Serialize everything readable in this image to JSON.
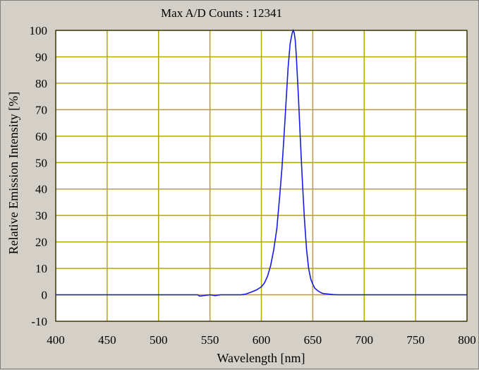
{
  "chart_data": {
    "type": "line",
    "title": "Max A/D Counts : 12341",
    "xlabel": "Wavelength [nm]",
    "ylabel": "Relative Emission Intensity [%]",
    "xlim": [
      400,
      800
    ],
    "ylim": [
      -10,
      100
    ],
    "xticks": [
      400,
      450,
      500,
      550,
      600,
      650,
      700,
      750,
      800
    ],
    "yticks": [
      -10,
      0,
      10,
      20,
      30,
      40,
      50,
      60,
      70,
      80,
      90,
      100
    ],
    "grid": true,
    "colors": {
      "series": "#1a1ae6",
      "grid": "#b5a800",
      "plot_bg": "#ffffff",
      "frame_bg": "#d4d0c8"
    },
    "series": [
      {
        "x": [
          400,
          450,
          500,
          538,
          540,
          550,
          555,
          560,
          570,
          580,
          585,
          590,
          595,
          600,
          603,
          606,
          609,
          612,
          615,
          618,
          620,
          622,
          624,
          626,
          628,
          630,
          631,
          632,
          633,
          634,
          636,
          638,
          640,
          642,
          644,
          646,
          648,
          650,
          652,
          655,
          658,
          660,
          665,
          670,
          675,
          680,
          700,
          750,
          800
        ],
        "y": [
          0,
          0,
          0,
          0,
          -0.5,
          0,
          -0.3,
          0,
          0,
          0,
          0.3,
          1,
          1.8,
          3,
          4.5,
          7,
          11,
          17,
          25,
          38,
          48,
          60,
          73,
          86,
          95,
          99,
          100,
          99,
          96,
          90,
          75,
          58,
          42,
          28,
          17,
          10,
          6,
          4,
          2.5,
          1.5,
          0.8,
          0.5,
          0.3,
          0.1,
          0,
          0,
          0,
          0,
          0
        ]
      }
    ]
  }
}
